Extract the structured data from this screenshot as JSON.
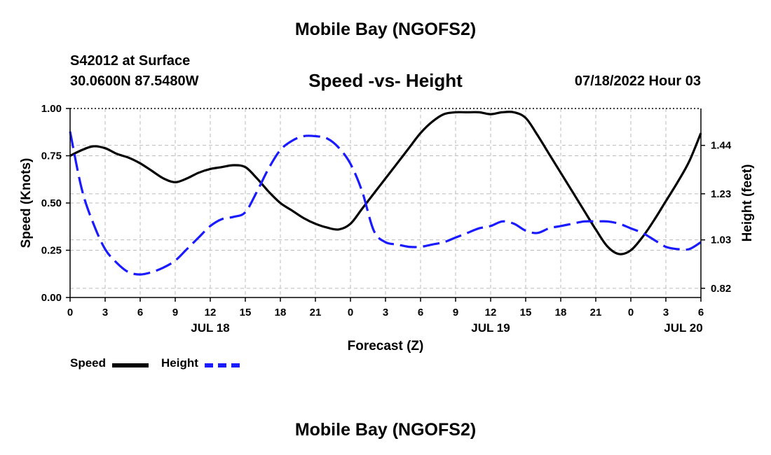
{
  "header": {
    "title": "Mobile Bay (NGOFS2)",
    "station": "S42012 at Surface",
    "coordinates": "30.0600N  87.5480W",
    "subtitle": "Speed -vs- Height",
    "datetime": "07/18/2022 Hour 03"
  },
  "footer": {
    "title": "Mobile Bay (NGOFS2)"
  },
  "chart_data": {
    "type": "line",
    "xlabel": "Forecast (Z)",
    "ylabel": "Speed (Knots)",
    "y2label": "Height (feet)",
    "x_unit": "forecast hour from Jul 18 00Z",
    "xlim": [
      0,
      54
    ],
    "ylim": [
      0,
      1
    ],
    "y2lim": [
      0.78,
      1.6
    ],
    "x_ticks": [
      0,
      3,
      6,
      9,
      12,
      15,
      18,
      21,
      24,
      27,
      30,
      33,
      36,
      39,
      42,
      45,
      48,
      51,
      54
    ],
    "x_tick_labels": [
      "0",
      "3",
      "6",
      "9",
      "12",
      "15",
      "18",
      "21",
      "0",
      "3",
      "6",
      "9",
      "12",
      "15",
      "18",
      "21",
      "0",
      "3",
      "6"
    ],
    "date_labels": [
      {
        "label": "JUL 18",
        "x": 12
      },
      {
        "label": "JUL 19",
        "x": 36
      },
      {
        "label": "JUL 20",
        "x": 52.5
      }
    ],
    "y_ticks": [
      0,
      0.25,
      0.5,
      0.75,
      1.0
    ],
    "y_tick_labels": [
      "0.00",
      "0.25",
      "0.50",
      "0.75",
      "1.00"
    ],
    "y2_ticks": [
      0.82,
      1.03,
      1.23,
      1.44
    ],
    "y2_tick_labels": [
      "0.82",
      "1.03",
      "1.23",
      "1.44"
    ],
    "grid": true,
    "legend_position": "bottom-left",
    "series": [
      {
        "name": "Speed",
        "axis": "left",
        "color": "#000000",
        "style": "solid",
        "x": [
          0,
          1,
          2,
          3,
          4,
          5,
          6,
          7,
          8,
          9,
          10,
          11,
          12,
          13,
          14,
          15,
          16,
          17,
          18,
          19,
          20,
          21,
          22,
          23,
          24,
          25,
          26,
          27,
          28,
          29,
          30,
          31,
          32,
          33,
          34,
          35,
          36,
          37,
          38,
          39,
          40,
          41,
          42,
          43,
          44,
          45,
          46,
          47,
          48,
          49,
          50,
          51,
          52,
          53,
          54
        ],
        "values": [
          0.75,
          0.78,
          0.8,
          0.79,
          0.76,
          0.74,
          0.71,
          0.67,
          0.63,
          0.61,
          0.63,
          0.66,
          0.68,
          0.69,
          0.7,
          0.69,
          0.63,
          0.56,
          0.5,
          0.46,
          0.42,
          0.39,
          0.37,
          0.36,
          0.39,
          0.47,
          0.55,
          0.63,
          0.71,
          0.79,
          0.87,
          0.93,
          0.97,
          0.98,
          0.98,
          0.98,
          0.97,
          0.98,
          0.98,
          0.95,
          0.86,
          0.76,
          0.66,
          0.56,
          0.46,
          0.36,
          0.27,
          0.23,
          0.25,
          0.32,
          0.41,
          0.51,
          0.61,
          0.72,
          0.87
        ]
      },
      {
        "name": "Height",
        "axis": "right",
        "color": "#1a1aff",
        "style": "dashed",
        "x": [
          0,
          1,
          2,
          3,
          4,
          5,
          6,
          7,
          8,
          9,
          10,
          11,
          12,
          13,
          14,
          15,
          16,
          17,
          18,
          19,
          20,
          21,
          22,
          23,
          24,
          25,
          26,
          27,
          28,
          29,
          30,
          31,
          32,
          33,
          34,
          35,
          36,
          37,
          38,
          39,
          40,
          41,
          42,
          43,
          44,
          45,
          46,
          47,
          48,
          49,
          50,
          51,
          52,
          53,
          54
        ],
        "values": [
          1.5,
          1.25,
          1.1,
          0.99,
          0.93,
          0.89,
          0.88,
          0.89,
          0.91,
          0.94,
          0.99,
          1.04,
          1.09,
          1.12,
          1.13,
          1.15,
          1.24,
          1.34,
          1.42,
          1.46,
          1.48,
          1.48,
          1.47,
          1.43,
          1.36,
          1.24,
          1.07,
          1.02,
          1.01,
          1.0,
          1.0,
          1.01,
          1.02,
          1.04,
          1.06,
          1.08,
          1.09,
          1.11,
          1.1,
          1.07,
          1.06,
          1.08,
          1.09,
          1.1,
          1.11,
          1.11,
          1.11,
          1.1,
          1.08,
          1.06,
          1.03,
          1.0,
          0.99,
          0.99,
          1.02
        ]
      }
    ]
  }
}
